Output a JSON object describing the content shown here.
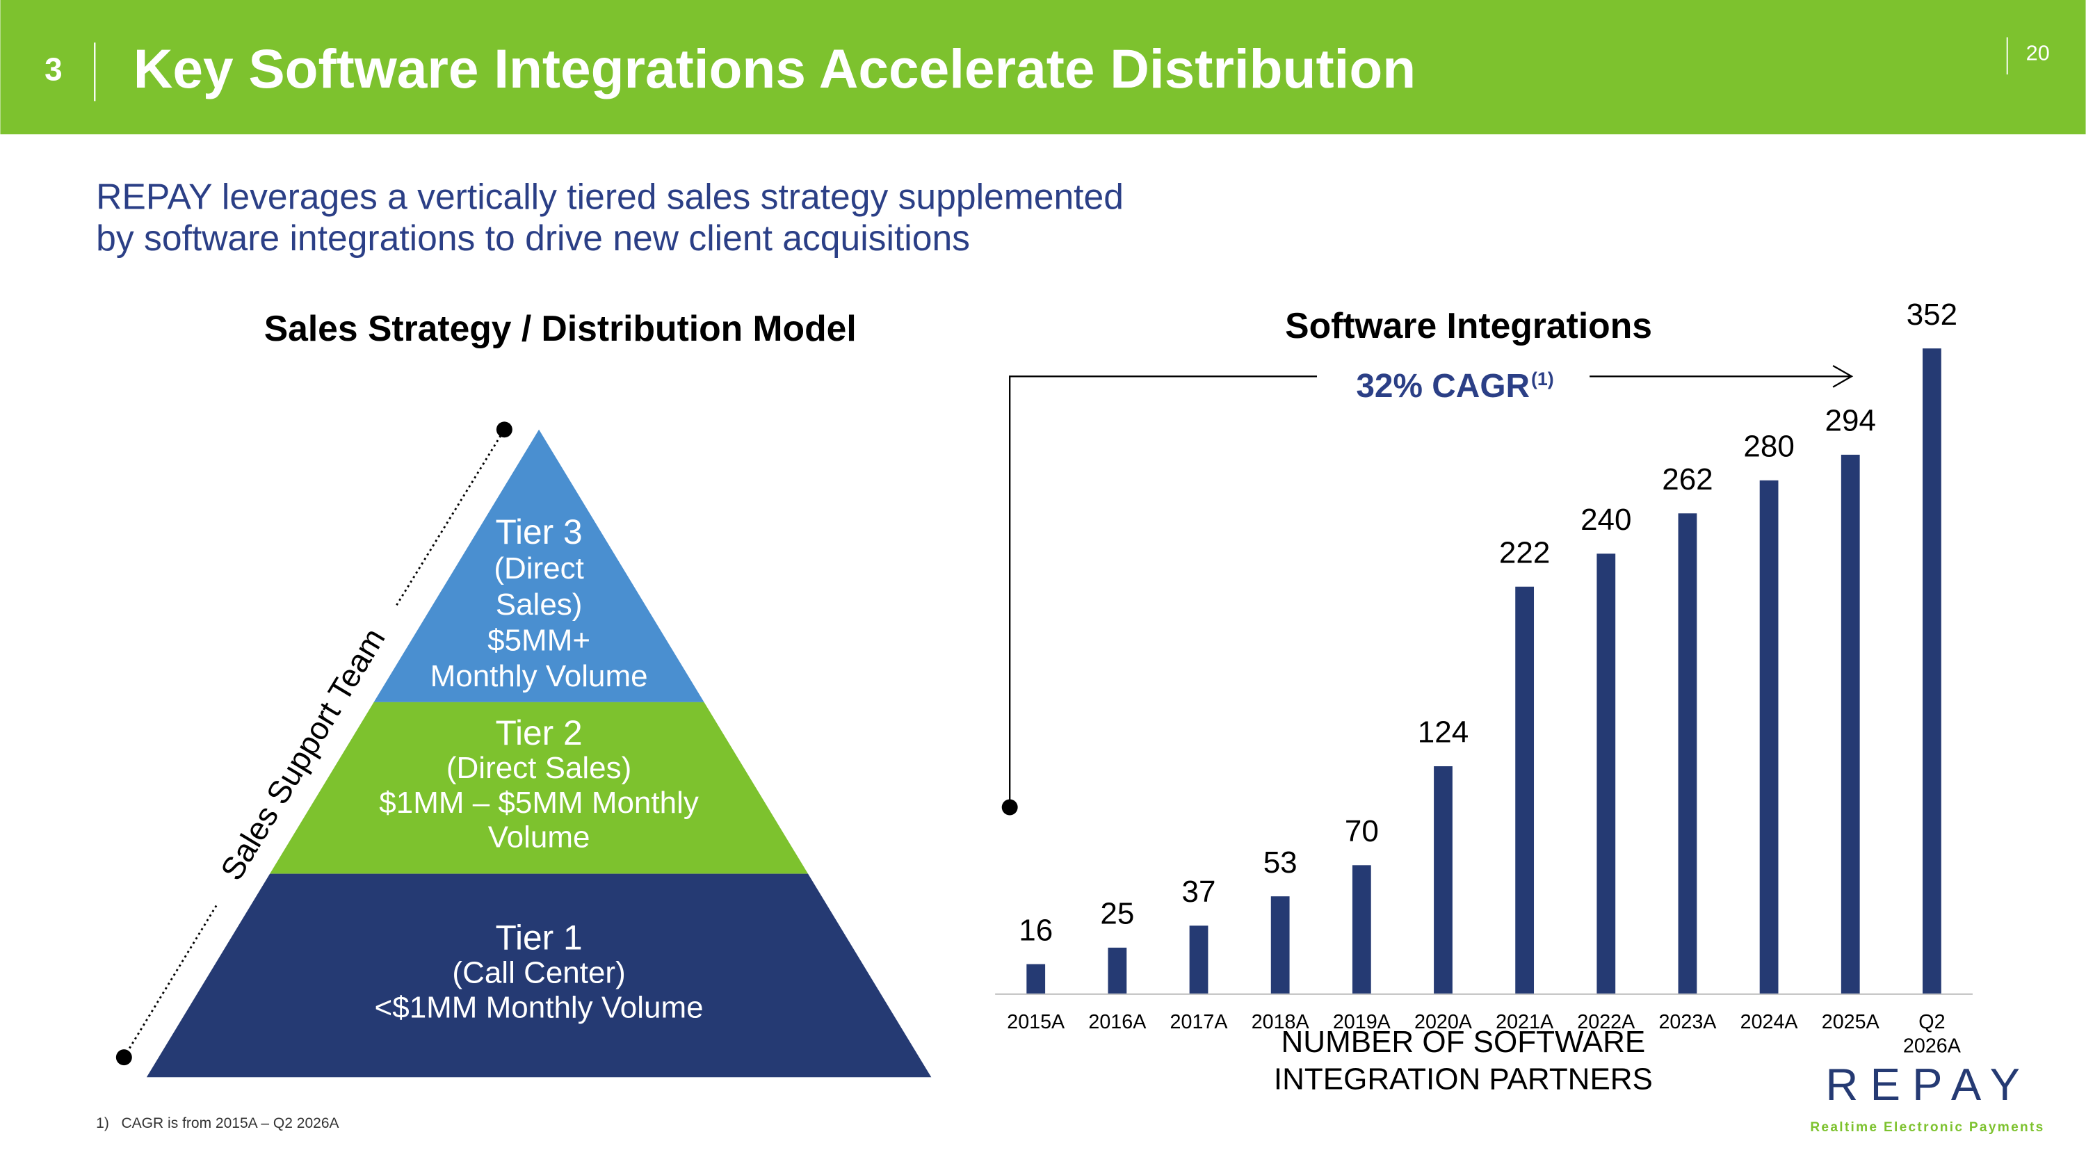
{
  "header": {
    "section": "3",
    "title": "Key Software Integrations Accelerate Distribution",
    "page": "20"
  },
  "subtitle": [
    "REPAY leverages a vertically tiered sales strategy supplemented",
    "by software integrations to drive new client acquisitions"
  ],
  "pyramid": {
    "title": "Sales Strategy / Distribution Model",
    "side_label": "Sales Support Team",
    "tiers": [
      {
        "lines": [
          "Tier 3",
          "(Direct",
          "Sales)",
          "$5MM+",
          "Monthly Volume"
        ],
        "color": "#4a8fd0"
      },
      {
        "lines": [
          "Tier 2",
          "(Direct Sales)",
          "$1MM – $5MM Monthly",
          "Volume"
        ],
        "color": "#7dc22e"
      },
      {
        "lines": [
          "Tier 1",
          "(Call Center)",
          "<$1MM Monthly Volume"
        ],
        "color": "#253a73"
      }
    ]
  },
  "chart_data": {
    "type": "bar",
    "title": "Software Integrations",
    "annotation": "32% CAGR",
    "annotation_note": "(1)",
    "categories": [
      "2015A",
      "2016A",
      "2017A",
      "2018A",
      "2019A",
      "2020A",
      "2021A",
      "2022A",
      "2023A",
      "2024A",
      "2025A",
      "Q2 2026A"
    ],
    "values": [
      16,
      25,
      37,
      53,
      70,
      124,
      222,
      240,
      262,
      280,
      294,
      352
    ],
    "color": "#253a73",
    "x_label": [
      "NUMBER OF SOFTWARE",
      "INTEGRATION PARTNERS"
    ]
  },
  "footnote": {
    "marker": "1)",
    "text": "CAGR is from 2015A – Q2 2026A"
  },
  "logo": {
    "name": "REPAY",
    "tagline": "Realtime Electronic Payments"
  }
}
